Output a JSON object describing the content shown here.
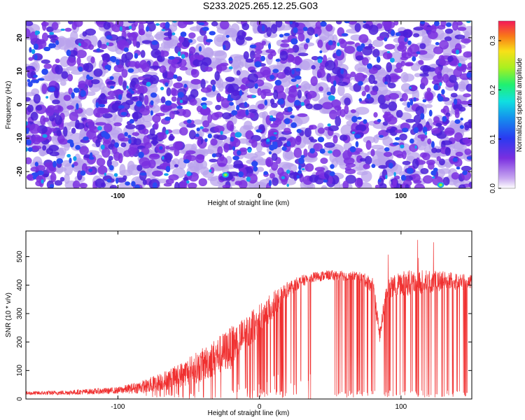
{
  "title": "S233.2025.265.12.25.G03",
  "chart_data": [
    {
      "type": "heatmap",
      "xlabel": "Height of straight line (km)",
      "ylabel": "Frequency (Hz)",
      "xlim": [
        -165,
        150
      ],
      "ylim": [
        -25,
        25
      ],
      "xticks": [
        -100,
        0,
        100
      ],
      "yticks": [
        -20,
        -10,
        0,
        10,
        20
      ],
      "colorbar": {
        "label": "Normalized spectral amplitude",
        "range": [
          0,
          0.34
        ],
        "ticks": [
          0.0,
          0.1,
          0.2,
          0.3
        ]
      },
      "colors": [
        "#ffffff",
        "#b9a3ec",
        "#7a2fe0",
        "#4a1fd8",
        "#2a4af2",
        "#14a0ee",
        "#10e8d0",
        "#4cf070",
        "#b8f020",
        "#f8d818",
        "#f87818",
        "#f41854"
      ]
    },
    {
      "type": "line",
      "xlabel": "Height of straight line (km)",
      "ylabel": "SNR (10 * v/v)",
      "xlim": [
        -165,
        150
      ],
      "ylim": [
        0,
        590
      ],
      "xticks": [
        -100,
        0,
        100
      ],
      "yticks": [
        0,
        100,
        200,
        300,
        400,
        500
      ],
      "color": "#f03030",
      "series": [
        {
          "name": "SNR",
          "x": [
            -165,
            -140,
            -100,
            -80,
            -60,
            -40,
            -20,
            -10,
            0,
            10,
            20,
            30,
            40,
            50,
            60,
            70,
            80,
            85,
            90,
            100,
            110,
            120,
            130,
            140,
            150
          ],
          "base": [
            20,
            22,
            30,
            45,
            75,
            120,
            180,
            230,
            280,
            330,
            385,
            415,
            430,
            435,
            432,
            432,
            400,
            220,
            390,
            405,
            410,
            412,
            415,
            412,
            410
          ],
          "spread": [
            14,
            16,
            24,
            50,
            80,
            120,
            150,
            120,
            110,
            100,
            60,
            40,
            35,
            35,
            35,
            35,
            60,
            60,
            70,
            90,
            90,
            80,
            70,
            60,
            50
          ],
          "dropout_ranges": [
            [
              -12,
              20
            ],
            [
              52,
              82
            ],
            [
              88,
              150
            ]
          ]
        }
      ]
    }
  ]
}
